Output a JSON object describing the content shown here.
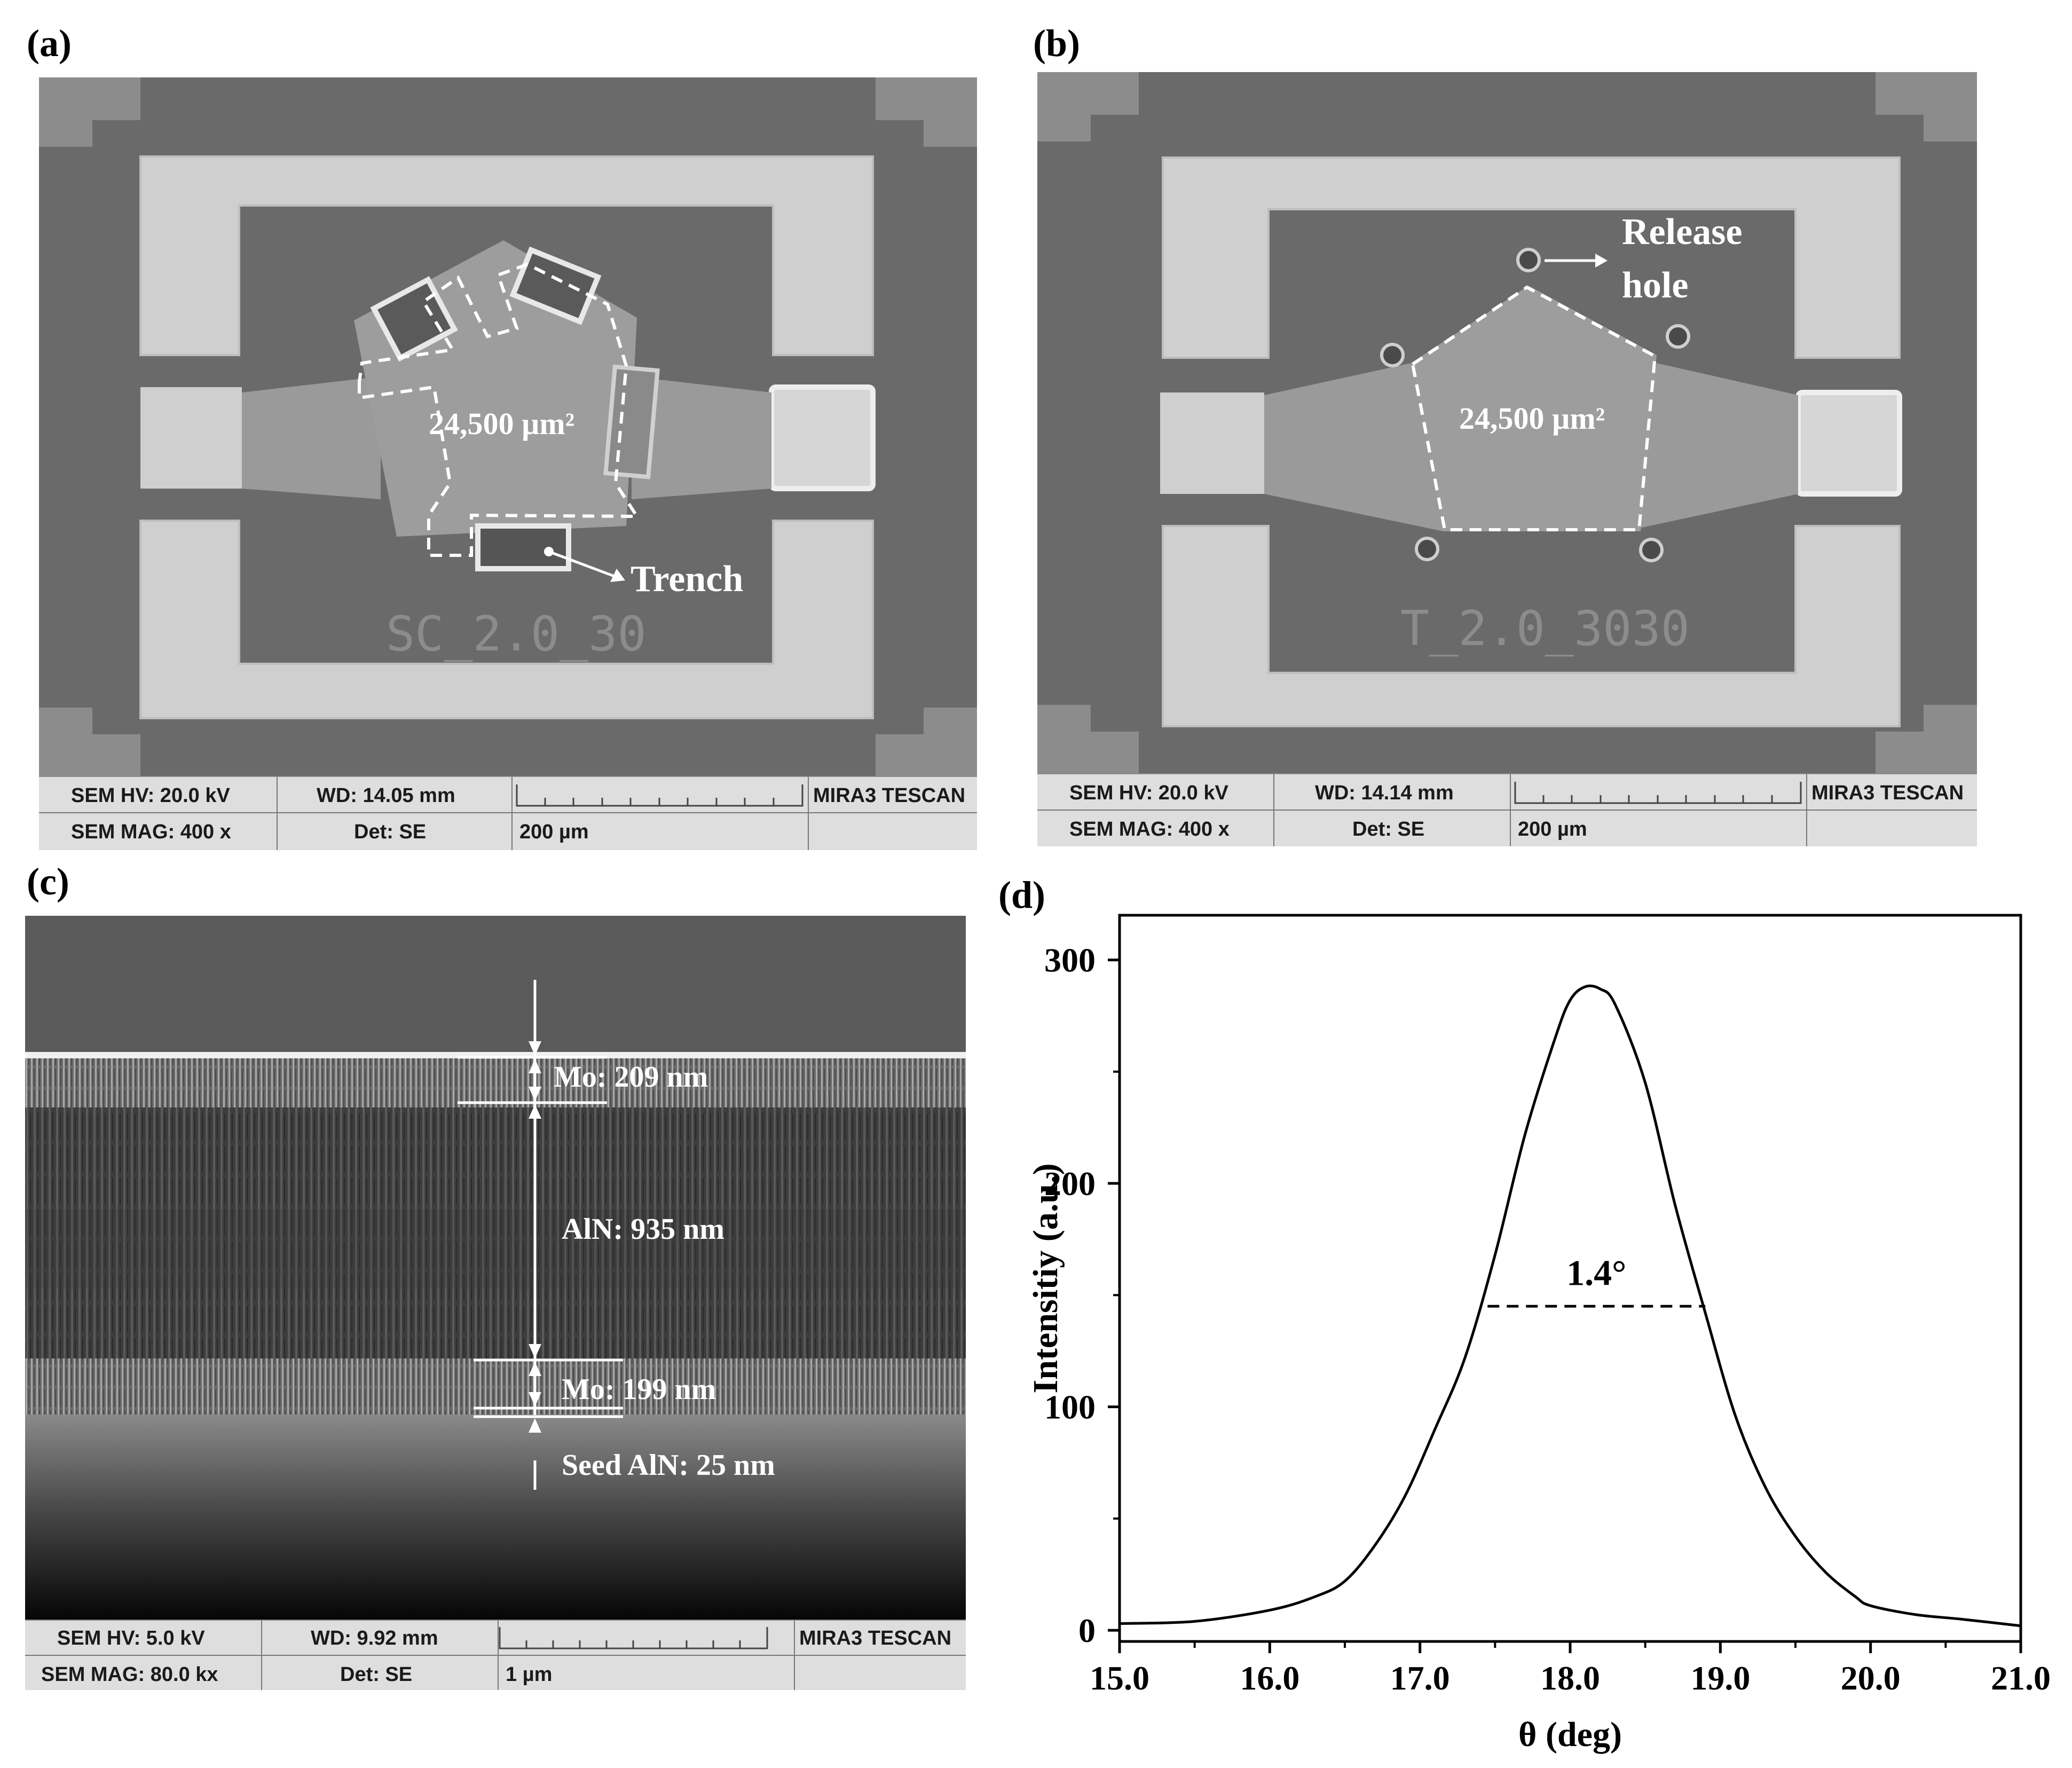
{
  "panels": {
    "a": {
      "label": "(a)",
      "area_label": "24,500 µm²",
      "trench_label": "Trench",
      "chip_id": "SC_2.0_30",
      "info": {
        "hv": "SEM HV: 20.0 kV",
        "wd": "WD: 14.05 mm",
        "brand": "MIRA3 TESCAN",
        "mag": "SEM MAG: 400 x",
        "det": "Det: SE",
        "scale": "200 µm"
      }
    },
    "b": {
      "label": "(b)",
      "area_label": "24,500 µm²",
      "release_label_1": "Release",
      "release_label_2": "hole",
      "chip_id": "T_2.0_3030",
      "info": {
        "hv": "SEM HV: 20.0 kV",
        "wd": "WD: 14.14 mm",
        "brand": "MIRA3 TESCAN",
        "mag": "SEM MAG: 400 x",
        "det": "Det: SE",
        "scale": "200 µm"
      }
    },
    "c": {
      "label": "(c)",
      "layers": {
        "mo_top": "Mo: 209 nm",
        "aln": "AlN: 935 nm",
        "mo_bottom": "Mo: 199 nm",
        "seed": "Seed AlN: 25 nm"
      },
      "info": {
        "hv": "SEM HV: 5.0 kV",
        "wd": "WD: 9.92 mm",
        "brand": "MIRA3 TESCAN",
        "mag": "SEM MAG: 80.0 kx",
        "det": "Det: SE",
        "scale": "1 µm"
      }
    },
    "d": {
      "label": "(d)"
    }
  },
  "chart_data": {
    "type": "line",
    "title": "",
    "xlabel": "θ (deg)",
    "ylabel": "Intensitiy (a.u.)",
    "xlim": [
      15.0,
      21.0
    ],
    "ylim": [
      -5,
      320
    ],
    "xticks": [
      "15.0",
      "16.0",
      "17.0",
      "18.0",
      "19.0",
      "20.0",
      "21.0"
    ],
    "yticks": [
      "0",
      "100",
      "200",
      "300"
    ],
    "fwhm_label": "1.4°",
    "fwhm_line": {
      "x_start": 17.45,
      "x_end": 18.9,
      "y": 145
    },
    "series": [
      {
        "color": "#000000",
        "x": [
          15.0,
          15.5,
          16.0,
          16.3,
          16.5,
          16.7,
          16.9,
          17.1,
          17.3,
          17.5,
          17.7,
          17.9,
          18.0,
          18.1,
          18.2,
          18.3,
          18.5,
          18.7,
          18.9,
          19.1,
          19.3,
          19.5,
          19.7,
          19.9,
          20.0,
          20.3,
          20.6,
          21.0
        ],
        "y": [
          3,
          4,
          9,
          15,
          22,
          38,
          60,
          90,
          122,
          168,
          222,
          265,
          282,
          288,
          287,
          280,
          245,
          190,
          142,
          96,
          64,
          42,
          26,
          15,
          11,
          7,
          5,
          2
        ]
      }
    ]
  }
}
